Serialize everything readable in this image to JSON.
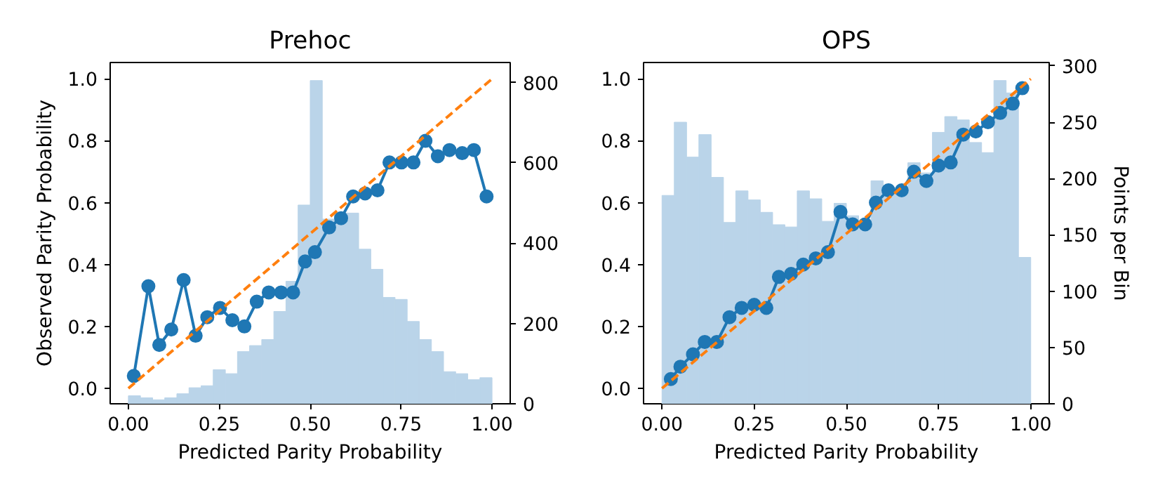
{
  "chart_data": [
    {
      "type": "line",
      "title": "Prehoc",
      "xlabel": "Predicted Parity Probability",
      "ylabel": "Observed Parity Probability",
      "xlim": [
        -0.05,
        1.05
      ],
      "ylim": [
        -0.05,
        1.053
      ],
      "y2lim": [
        0,
        850
      ],
      "xticks": [
        {
          "value": 0,
          "label": "0.00"
        },
        {
          "value": 0.25,
          "label": "0.25"
        },
        {
          "value": 0.5,
          "label": "0.50"
        },
        {
          "value": 0.75,
          "label": "0.75"
        },
        {
          "value": 1,
          "label": "1.00"
        }
      ],
      "yticks": [
        {
          "value": 0,
          "label": "0.0"
        },
        {
          "value": 0.2,
          "label": "0.2"
        },
        {
          "value": 0.4,
          "label": "0.4"
        },
        {
          "value": 0.6,
          "label": "0.6"
        },
        {
          "value": 0.8,
          "label": "0.8"
        },
        {
          "value": 1,
          "label": "1.0"
        }
      ],
      "y2ticks": [
        0,
        200,
        400,
        600,
        800
      ],
      "grid": false,
      "series": [
        {
          "type": "histogram",
          "axis": "y2",
          "color": "#bad4e9",
          "bins": [
            0,
            0.0333,
            0.0667,
            0.1,
            0.1333,
            0.1667,
            0.2,
            0.2333,
            0.2667,
            0.3,
            0.3333,
            0.3667,
            0.4,
            0.4333,
            0.4667,
            0.5,
            0.5333,
            0.5667,
            0.6,
            0.6333,
            0.6667,
            0.7,
            0.7333,
            0.7667,
            0.8,
            0.8333,
            0.8667,
            0.9,
            0.9333,
            0.9667,
            1
          ],
          "values": [
            20,
            15,
            10,
            15,
            25,
            40,
            45,
            85,
            75,
            130,
            145,
            160,
            230,
            305,
            495,
            805,
            460,
            475,
            475,
            385,
            335,
            265,
            260,
            205,
            160,
            130,
            80,
            75,
            60,
            65
          ]
        },
        {
          "color": "#1f77b4",
          "marker": "circle",
          "line_style": "solid",
          "x": [
            0.015,
            0.055,
            0.085,
            0.118,
            0.152,
            0.185,
            0.217,
            0.252,
            0.286,
            0.319,
            0.353,
            0.386,
            0.42,
            0.453,
            0.486,
            0.513,
            0.552,
            0.585,
            0.618,
            0.651,
            0.685,
            0.718,
            0.751,
            0.784,
            0.817,
            0.851,
            0.883,
            0.918,
            0.95,
            0.985
          ],
          "values": [
            0.04,
            0.33,
            0.14,
            0.19,
            0.35,
            0.17,
            0.23,
            0.26,
            0.22,
            0.2,
            0.28,
            0.31,
            0.31,
            0.31,
            0.41,
            0.44,
            0.52,
            0.55,
            0.62,
            0.63,
            0.64,
            0.73,
            0.73,
            0.73,
            0.8,
            0.75,
            0.77,
            0.76,
            0.77,
            0.62
          ]
        },
        {
          "type": "line",
          "color": "#ff7f0e",
          "marker": "none",
          "line_style": "dashed",
          "x": [
            0,
            1
          ],
          "values": [
            0,
            1
          ]
        }
      ]
    },
    {
      "type": "line",
      "title": "OPS",
      "xlabel": "Predicted Parity Probability",
      "y2label": "Points per Bin",
      "xlim": [
        -0.05,
        1.05
      ],
      "ylim": [
        -0.05,
        1.053
      ],
      "y2lim": [
        0,
        303
      ],
      "xticks": [
        {
          "value": 0,
          "label": "0.00"
        },
        {
          "value": 0.25,
          "label": "0.25"
        },
        {
          "value": 0.5,
          "label": "0.50"
        },
        {
          "value": 0.75,
          "label": "0.75"
        },
        {
          "value": 1,
          "label": "1.00"
        }
      ],
      "yticks": [
        {
          "value": 0,
          "label": "0.0"
        },
        {
          "value": 0.2,
          "label": "0.2"
        },
        {
          "value": 0.4,
          "label": "0.4"
        },
        {
          "value": 0.6,
          "label": "0.6"
        },
        {
          "value": 0.8,
          "label": "0.8"
        },
        {
          "value": 1,
          "label": "1.0"
        }
      ],
      "y2ticks": [
        0,
        50,
        100,
        150,
        200,
        250,
        300
      ],
      "grid": false,
      "series": [
        {
          "type": "histogram",
          "axis": "y2",
          "color": "#bad4e9",
          "bins": [
            0,
            0.0333,
            0.0667,
            0.1,
            0.1333,
            0.1667,
            0.2,
            0.2333,
            0.2667,
            0.3,
            0.3333,
            0.3667,
            0.4,
            0.4333,
            0.4667,
            0.5,
            0.5333,
            0.5667,
            0.6,
            0.6333,
            0.6667,
            0.7,
            0.7333,
            0.7667,
            0.8,
            0.8333,
            0.8667,
            0.9,
            0.9333,
            0.9667,
            1
          ],
          "values": [
            185,
            250,
            219,
            239,
            201,
            161,
            189,
            181,
            170,
            159,
            157,
            189,
            182,
            162,
            178,
            167,
            161,
            198,
            190,
            186,
            214,
            205,
            241,
            255,
            252,
            232,
            223,
            287,
            276,
            130
          ]
        },
        {
          "color": "#1f77b4",
          "marker": "circle",
          "line_style": "solid",
          "x": [
            0.024,
            0.05,
            0.084,
            0.116,
            0.149,
            0.183,
            0.216,
            0.25,
            0.283,
            0.317,
            0.35,
            0.383,
            0.417,
            0.45,
            0.484,
            0.517,
            0.551,
            0.58,
            0.614,
            0.65,
            0.683,
            0.717,
            0.75,
            0.783,
            0.817,
            0.851,
            0.884,
            0.917,
            0.951,
            0.977
          ],
          "values": [
            0.03,
            0.07,
            0.11,
            0.15,
            0.15,
            0.23,
            0.26,
            0.27,
            0.26,
            0.36,
            0.37,
            0.4,
            0.42,
            0.44,
            0.57,
            0.53,
            0.53,
            0.6,
            0.64,
            0.64,
            0.7,
            0.67,
            0.72,
            0.73,
            0.82,
            0.83,
            0.86,
            0.89,
            0.92,
            0.97
          ]
        },
        {
          "type": "line",
          "color": "#ff7f0e",
          "marker": "none",
          "line_style": "dashed",
          "x": [
            0,
            1
          ],
          "values": [
            0,
            1
          ]
        }
      ]
    }
  ]
}
